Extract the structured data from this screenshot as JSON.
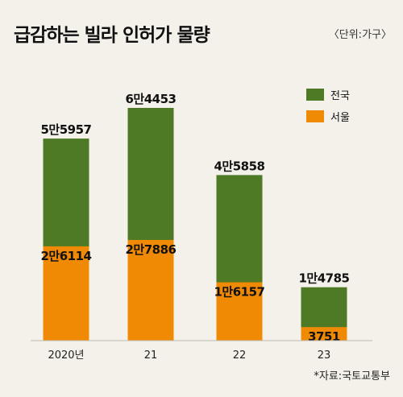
{
  "header": {
    "title": "급감하는 빌라 인허가 물량",
    "unit": "〈단위:가구〉"
  },
  "footer": {
    "source": "*자료:국토교통부"
  },
  "colors": {
    "national": "#4e7a26",
    "seoul": "#f08a05",
    "background": "#f4f1ea"
  },
  "chart_data": {
    "type": "bar",
    "stacked": "overlay",
    "categories": [
      "2020년",
      "21",
      "22",
      "23"
    ],
    "series": [
      {
        "name": "전국",
        "values": [
          55957,
          64453,
          45858,
          14785
        ],
        "labels": [
          "5만5957",
          "6만4453",
          "4만5858",
          "1만4785"
        ]
      },
      {
        "name": "서울",
        "values": [
          26114,
          27886,
          16157,
          3751
        ],
        "labels": [
          "2만6114",
          "2만7886",
          "1만6157",
          "3751"
        ]
      }
    ],
    "legend": "top-right",
    "grid": false,
    "ylim": [
      0,
      64453
    ]
  }
}
